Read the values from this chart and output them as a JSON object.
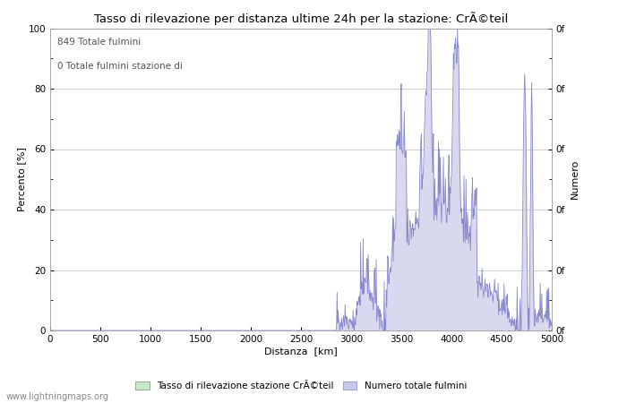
{
  "title": "Tasso di rilevazione per distanza ultime 24h per la stazione: CrÃ©teil",
  "xlabel": "Distanza  [km]",
  "ylabel_left": "Percento [%]",
  "ylabel_right": "Numero",
  "xlim": [
    0,
    5000
  ],
  "ylim_left": [
    0,
    100
  ],
  "annotation_lines": [
    "849 Totale fulmini",
    "0 Totale fulmini stazione di"
  ],
  "legend_entries": [
    "Tasso di rilevazione stazione CrÃ©teil",
    "Numero totale fulmini"
  ],
  "legend_colors_fill": [
    "#c8e6c8",
    "#c8c8e8"
  ],
  "legend_colors_line": [
    "#60a060",
    "#8080c0"
  ],
  "watermark": "www.lightningmaps.org",
  "right_ytick_label": "0f",
  "xticks": [
    0,
    500,
    1000,
    1500,
    2000,
    2500,
    3000,
    3500,
    4000,
    4500,
    5000
  ],
  "yticks_left": [
    0,
    20,
    40,
    60,
    80,
    100
  ],
  "background_color": "#ffffff",
  "grid_color": "#c8c8c8",
  "plot_bg_color": "#ffffff",
  "line_color": "#8888cc",
  "fill_color": "#d8d8ee"
}
